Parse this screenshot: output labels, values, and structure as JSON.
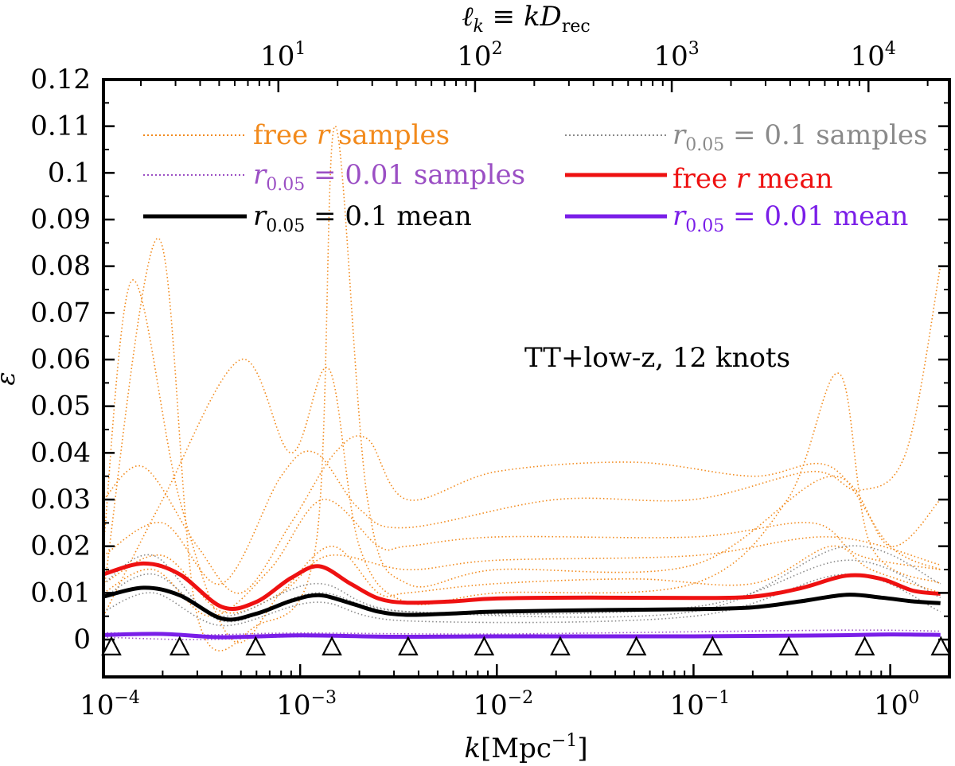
{
  "chart_data": {
    "type": "line",
    "title": "",
    "xlabel": "k[Mpc⁻¹]",
    "ylabel": "ε",
    "top_xlabel": "ℓk ≡ kDrec",
    "xscale": "log",
    "xlim": [
      0.0001,
      2.0
    ],
    "ylim": [
      -0.008,
      0.12
    ],
    "annotation": "TT+low-z, 12 knots",
    "y_ticks": [
      "0",
      "0.01",
      "0.02",
      "0.03",
      "0.04",
      "0.05",
      "0.06",
      "0.07",
      "0.08",
      "0.09",
      "0.1",
      "0.11",
      "0.12"
    ],
    "x_ticks": [
      {
        "base": "10",
        "exp": "−4",
        "value": 0.0001
      },
      {
        "base": "10",
        "exp": "−3",
        "value": 0.001
      },
      {
        "base": "10",
        "exp": "−2",
        "value": 0.01
      },
      {
        "base": "10",
        "exp": "−1",
        "value": 0.1
      },
      {
        "base": "10",
        "exp": "0",
        "value": 1
      }
    ],
    "top_x_ticks": [
      {
        "base": "10",
        "exp": "1",
        "k": 0.000775
      },
      {
        "base": "10",
        "exp": "2",
        "k": 0.00775
      },
      {
        "base": "10",
        "exp": "3",
        "k": 0.0775
      },
      {
        "base": "10",
        "exp": "4",
        "k": 0.775
      }
    ],
    "knots_k": [
      0.0001,
      0.000244,
      0.000594,
      0.00145,
      0.00354,
      0.00862,
      0.021,
      0.0512,
      0.125,
      0.305,
      0.742,
      1.81
    ],
    "legend": [
      {
        "label": "free r samples",
        "style": "dotted",
        "color": "#f28a1c"
      },
      {
        "label": "r0.05 = 0.1 samples",
        "style": "dotted",
        "color": "#8a8a8a"
      },
      {
        "label": "r0.05 = 0.01 samples",
        "style": "dotted",
        "color": "#9b4fc4"
      },
      {
        "label": "free r mean",
        "style": "solid",
        "color": "#ee1111"
      },
      {
        "label": "r0.05 = 0.1 mean",
        "style": "solid",
        "color": "#000000"
      },
      {
        "label": "r0.05 = 0.01 mean",
        "style": "solid",
        "color": "#7a1ee8"
      }
    ],
    "series": [
      {
        "name": "free r mean",
        "color": "#ee1111",
        "x": [
          0.0001,
          0.00016,
          0.000244,
          0.0004,
          0.000594,
          0.0009,
          0.00125,
          0.0018,
          0.0025,
          0.0035,
          0.006,
          0.01,
          0.03,
          0.1,
          0.2,
          0.35,
          0.6,
          0.9,
          1.3,
          1.8
        ],
        "y": [
          0.014,
          0.0163,
          0.014,
          0.007,
          0.008,
          0.0132,
          0.0157,
          0.012,
          0.0088,
          0.0079,
          0.0082,
          0.0088,
          0.009,
          0.0089,
          0.0092,
          0.011,
          0.0137,
          0.013,
          0.0105,
          0.0098
        ]
      },
      {
        "name": "r0.05 = 0.1 mean",
        "color": "#000000",
        "x": [
          0.0001,
          0.00016,
          0.000244,
          0.0004,
          0.000594,
          0.0009,
          0.00125,
          0.0018,
          0.0025,
          0.0035,
          0.006,
          0.01,
          0.03,
          0.1,
          0.2,
          0.35,
          0.6,
          0.9,
          1.3,
          1.8
        ],
        "y": [
          0.0092,
          0.0111,
          0.0095,
          0.0045,
          0.0055,
          0.0083,
          0.0095,
          0.0078,
          0.006,
          0.0053,
          0.0056,
          0.006,
          0.0063,
          0.0065,
          0.0069,
          0.0082,
          0.0096,
          0.009,
          0.0082,
          0.0078
        ]
      },
      {
        "name": "r0.05 = 0.01 mean",
        "color": "#7a1ee8",
        "x": [
          0.0001,
          0.0002,
          0.0004,
          0.001,
          0.003,
          0.01,
          0.1,
          0.5,
          1.0,
          1.8
        ],
        "y": [
          0.001,
          0.0012,
          0.0005,
          0.0009,
          0.0006,
          0.0007,
          0.0007,
          0.0009,
          0.0011,
          0.001
        ]
      },
      {
        "name": "free r samples",
        "color": "#f28a1c",
        "samples": [
          {
            "x": [
              0.0001,
              0.00014,
              0.000244,
              0.00045,
              0.0008,
              0.00145,
              0.0025,
              0.0035,
              0.01,
              0.05,
              0.2,
              0.5,
              0.8,
              1.8
            ],
            "y": [
              0.02,
              0.077,
              0.03,
              0.0,
              0.01,
              0.02,
              0.01,
              0.01,
              0.012,
              0.013,
              0.012,
              0.02,
              0.015,
              0.01
            ]
          },
          {
            "x": [
              0.0001,
              0.00019,
              0.0003,
              0.0006,
              0.0012,
              0.0015,
              0.0022,
              0.0035,
              0.01,
              0.1,
              0.5,
              1.0,
              1.8
            ],
            "y": [
              0.01,
              0.086,
              0.005,
              0.003,
              0.02,
              0.11,
              0.03,
              0.012,
              0.015,
              0.016,
              0.035,
              0.02,
              0.03
            ]
          },
          {
            "x": [
              0.0001,
              0.0002,
              0.0005,
              0.0009,
              0.0014,
              0.002,
              0.0035,
              0.01,
              0.1,
              0.3,
              0.55,
              0.8,
              1.8
            ],
            "y": [
              0.005,
              0.03,
              0.06,
              0.04,
              0.058,
              0.02,
              0.008,
              0.01,
              0.012,
              0.03,
              0.057,
              0.02,
              0.012
            ]
          },
          {
            "x": [
              0.0001,
              0.00016,
              0.0003,
              0.0005,
              0.0009,
              0.0015,
              0.0022,
              0.0035,
              0.01,
              0.05,
              0.2,
              0.5,
              1.0,
              1.8
            ],
            "y": [
              0.03,
              0.037,
              0.02,
              0.01,
              0.025,
              0.04,
              0.043,
              0.03,
              0.036,
              0.038,
              0.035,
              0.037,
              0.02,
              0.015
            ]
          },
          {
            "x": [
              0.0001,
              0.0002,
              0.0004,
              0.0008,
              0.0012,
              0.002,
              0.0035,
              0.02,
              0.1,
              0.4,
              0.7,
              1.2,
              1.8
            ],
            "y": [
              0.018,
              0.025,
              0.012,
              0.035,
              0.04,
              0.028,
              0.024,
              0.03,
              0.03,
              0.036,
              0.032,
              0.04,
              0.08
            ]
          },
          {
            "x": [
              0.0001,
              0.00018,
              0.00035,
              0.0007,
              0.0013,
              0.0025,
              0.0035,
              0.01,
              0.1,
              0.4,
              0.7,
              1.8
            ],
            "y": [
              0.01,
              0.015,
              0.005,
              0.015,
              0.03,
              0.02,
              0.02,
              0.022,
              0.022,
              0.025,
              0.018,
              0.015
            ]
          },
          {
            "x": [
              0.0001,
              0.0002,
              0.0004,
              0.0008,
              0.0014,
              0.0035,
              0.01,
              0.1,
              0.5,
              1.8
            ],
            "y": [
              0.012,
              0.018,
              0.006,
              0.01,
              0.018,
              0.015,
              0.017,
              0.018,
              0.022,
              0.016
            ]
          }
        ]
      },
      {
        "name": "r0.05 = 0.1 samples",
        "color": "#8a8a8a",
        "samples": [
          {
            "x": [
              0.0001,
              0.00018,
              0.0004,
              0.0012,
              0.0035,
              0.1,
              0.6,
              1.8
            ],
            "y": [
              0.012,
              0.018,
              0.004,
              0.01,
              0.006,
              0.006,
              0.02,
              0.012
            ]
          },
          {
            "x": [
              0.0001,
              0.00018,
              0.0004,
              0.0012,
              0.0035,
              0.1,
              0.6,
              1.8
            ],
            "y": [
              0.006,
              0.01,
              0.003,
              0.008,
              0.004,
              0.005,
              0.014,
              0.006
            ]
          },
          {
            "x": [
              0.0001,
              0.00018,
              0.0004,
              0.0012,
              0.0035,
              0.1,
              0.6,
              1.8
            ],
            "y": [
              0.009,
              0.014,
              0.005,
              0.012,
              0.006,
              0.007,
              0.017,
              0.009
            ]
          }
        ]
      },
      {
        "name": "r0.05 = 0.01 samples",
        "color": "#9b4fc4",
        "samples": [
          {
            "x": [
              0.0001,
              0.0003,
              0.001,
              0.01,
              0.5,
              1.8
            ],
            "y": [
              0.0015,
              0.001,
              0.0014,
              0.0012,
              0.002,
              0.0018
            ]
          },
          {
            "x": [
              0.0001,
              0.0003,
              0.001,
              0.01,
              0.5,
              1.8
            ],
            "y": [
              0.0005,
              0.0,
              0.0006,
              0.0004,
              0.001,
              0.0008
            ]
          }
        ]
      }
    ]
  }
}
